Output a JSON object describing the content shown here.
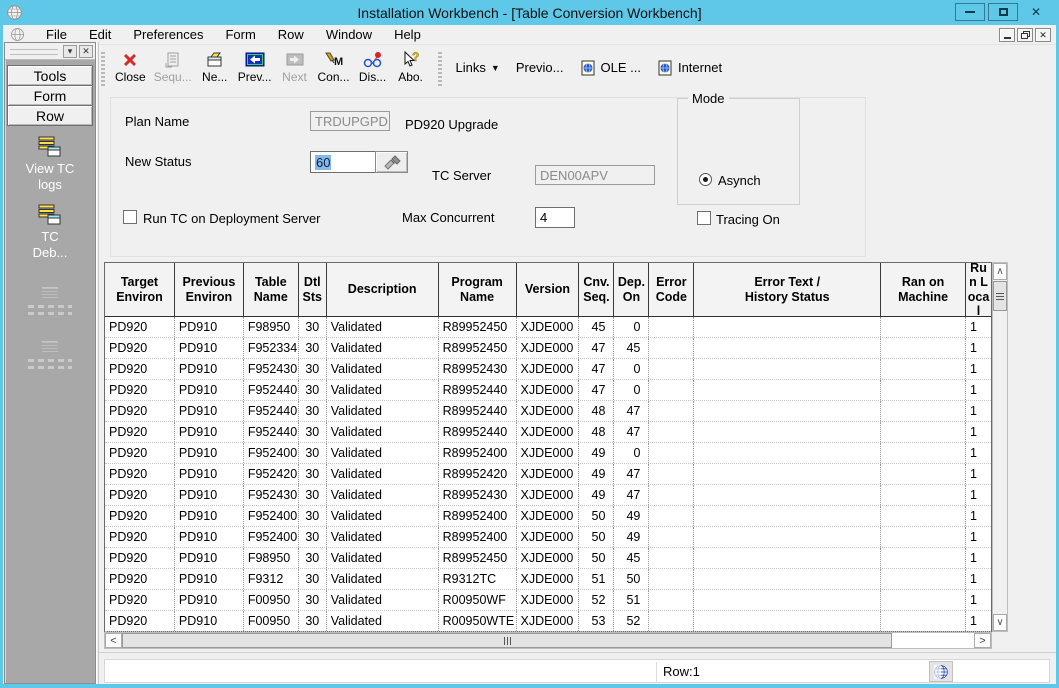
{
  "window": {
    "title": "Installation Workbench - [Table Conversion Workbench]",
    "close_glyph": "✕"
  },
  "menu": {
    "items": [
      "File",
      "Edit",
      "Preferences",
      "Form",
      "Row",
      "Window",
      "Help"
    ]
  },
  "toolbar": {
    "buttons": [
      {
        "label": "Close",
        "icon": "close-icon",
        "enabled": true
      },
      {
        "label": "Sequ...",
        "icon": "sequence-icon",
        "enabled": false
      },
      {
        "label": "Ne...",
        "icon": "new-icon",
        "enabled": true
      },
      {
        "label": "Prev...",
        "icon": "previous-icon",
        "enabled": true
      },
      {
        "label": "Next",
        "icon": "next-icon",
        "enabled": false
      },
      {
        "label": "Con...",
        "icon": "convert-icon",
        "enabled": true
      },
      {
        "label": "Dis...",
        "icon": "display-icon",
        "enabled": true
      },
      {
        "label": "Abo.",
        "icon": "about-icon",
        "enabled": true
      }
    ],
    "links_label": "Links",
    "dropdown_glyph": "▼",
    "previous_label": "Previo...",
    "ole_label": "OLE ...",
    "internet_label": "Internet"
  },
  "sidebar": {
    "tabs": [
      "Tools",
      "Form",
      "Row"
    ],
    "items": [
      {
        "label": "View TC\nlogs",
        "icon": "tc-logs-icon"
      },
      {
        "label": "TC\nDeb...",
        "icon": "tc-debug-icon"
      }
    ]
  },
  "form": {
    "plan_name_label": "Plan Name",
    "plan_name_value": "TRDUPGPD",
    "plan_note": "PD920 Upgrade",
    "new_status_label": "New Status",
    "new_status_value": "60",
    "tc_server_label": "TC Server",
    "tc_server_value": "DEN00APV",
    "run_tc_label": "Run TC on Deployment Server",
    "max_concurrent_label": "Max Concurrent",
    "max_concurrent_value": "4",
    "mode_label": "Mode",
    "mode_option": "Asynch",
    "tracing_label": "Tracing On"
  },
  "grid": {
    "columns": [
      "Target\nEnviron",
      "Previous\nEnviron",
      "Table\nName",
      "Dtl\nSts",
      "Description",
      "Program\nName",
      "Version",
      "Cnv.\nSeq.",
      "Dep.\nOn",
      "Error\nCode",
      "Error Text /\nHistory Status",
      "Ran on\nMachine",
      "Run Local"
    ],
    "rows": [
      [
        "PD920",
        "PD910",
        "F98950",
        "30",
        "Validated",
        "R89952450",
        "XJDE000",
        "45",
        "0",
        "",
        "",
        "",
        "1"
      ],
      [
        "PD920",
        "PD910",
        "F952334",
        "30",
        "Validated",
        "R89952450",
        "XJDE000",
        "47",
        "45",
        "",
        "",
        "",
        "1"
      ],
      [
        "PD920",
        "PD910",
        "F952430",
        "30",
        "Validated",
        "R89952430",
        "XJDE000",
        "47",
        "0",
        "",
        "",
        "",
        "1"
      ],
      [
        "PD920",
        "PD910",
        "F952440",
        "30",
        "Validated",
        "R89952440",
        "XJDE000",
        "47",
        "0",
        "",
        "",
        "",
        "1"
      ],
      [
        "PD920",
        "PD910",
        "F952440",
        "30",
        "Validated",
        "R89952440",
        "XJDE000",
        "48",
        "47",
        "",
        "",
        "",
        "1"
      ],
      [
        "PD920",
        "PD910",
        "F952440",
        "30",
        "Validated",
        "R89952440",
        "XJDE000",
        "48",
        "47",
        "",
        "",
        "",
        "1"
      ],
      [
        "PD920",
        "PD910",
        "F952400",
        "30",
        "Validated",
        "R89952400",
        "XJDE000",
        "49",
        "0",
        "",
        "",
        "",
        "1"
      ],
      [
        "PD920",
        "PD910",
        "F952420",
        "30",
        "Validated",
        "R89952420",
        "XJDE000",
        "49",
        "47",
        "",
        "",
        "",
        "1"
      ],
      [
        "PD920",
        "PD910",
        "F952430",
        "30",
        "Validated",
        "R89952430",
        "XJDE000",
        "49",
        "47",
        "",
        "",
        "",
        "1"
      ],
      [
        "PD920",
        "PD910",
        "F952400",
        "30",
        "Validated",
        "R89952400",
        "XJDE000",
        "50",
        "49",
        "",
        "",
        "",
        "1"
      ],
      [
        "PD920",
        "PD910",
        "F952400",
        "30",
        "Validated",
        "R89952400",
        "XJDE000",
        "50",
        "49",
        "",
        "",
        "",
        "1"
      ],
      [
        "PD920",
        "PD910",
        "F98950",
        "30",
        "Validated",
        "R89952450",
        "XJDE000",
        "50",
        "45",
        "",
        "",
        "",
        "1"
      ],
      [
        "PD920",
        "PD910",
        "F9312",
        "30",
        "Validated",
        "R9312TC",
        "XJDE000",
        "51",
        "50",
        "",
        "",
        "",
        "1"
      ],
      [
        "PD920",
        "PD910",
        "F00950",
        "30",
        "Validated",
        "R00950WF",
        "XJDE000",
        "52",
        "51",
        "",
        "",
        "",
        "1"
      ],
      [
        "PD920",
        "PD910",
        "F00950",
        "30",
        "Validated",
        "R00950WTE",
        "XJDE000",
        "53",
        "52",
        "",
        "",
        "",
        "1"
      ]
    ]
  },
  "statusbar": {
    "row_label": "Row:1"
  },
  "colors": {
    "titlebar": "#5fc8e8",
    "selection": "#86b9ea",
    "close_red": "#d42a2a",
    "sidebar_gray": "#a8a8a8"
  }
}
